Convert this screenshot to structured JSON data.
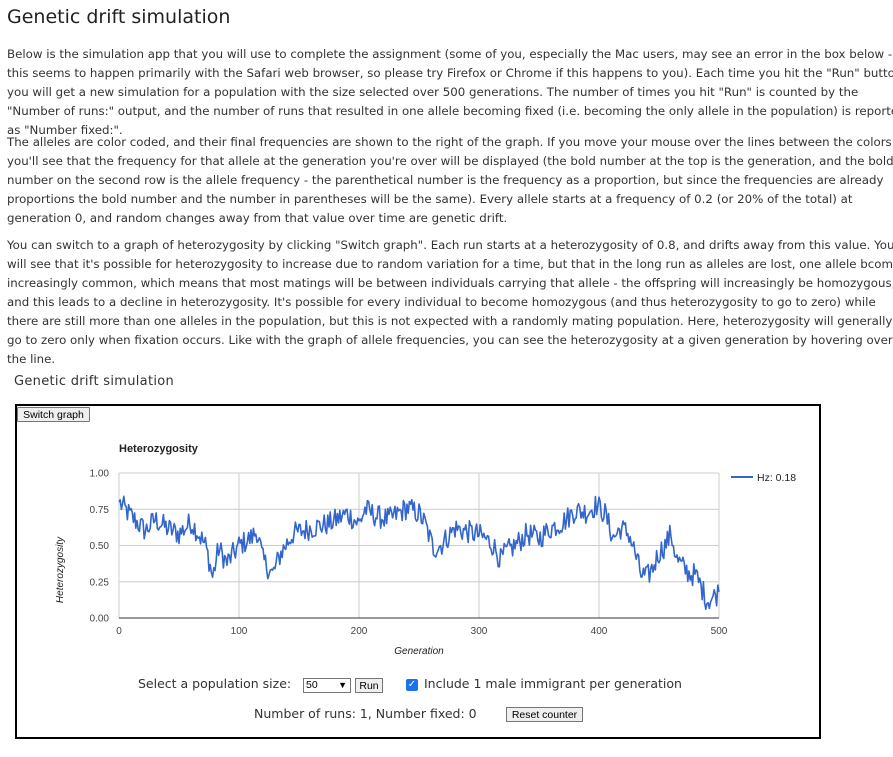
{
  "page": {
    "title": "Genetic drift simulation",
    "paragraphs": [
      "Below is the simulation app that you will use to complete the assignment (some of you, especially the Mac users, may see an error in the box below - this seems to happen primarily with the Safari web browser, so please try Firefox or Chrome if this happens to you). Each time you hit the \"Run\" button you will get a new simulation for a population with the size selected over 500 generations. The number of times you hit \"Run\" is counted by the \"Number of runs:\" output, and the number of runs that resulted in one allele becoming fixed (i.e. becoming the only allele in the population) is reported as \"Number fixed:\".",
      "The alleles are color coded, and their final frequencies are shown to the right of the graph. If you move your mouse over the lines between the colors you'll see that the frequency for that allele at the generation you're over will be displayed (the bold number at the top is the generation, and the bold number on the second row is the allele frequency - the parenthetical number is the frequency as a proportion, but since the frequencies are already proportions the bold number and the number in parentheses will be the same). Every allele starts at a frequency of 0.2 (or 20% of the total) at generation 0, and random changes away from that value over time are genetic drift.",
      "You can switch to a graph of heterozygosity by clicking \"Switch graph\". Each run starts at a heterozygosity of 0.8, and drifts away from this value. You will see that it's possible for heterozygosity to increase due to random variation for a time, but that in the long run as alleles are lost, one allele bcomes increasingly common, which means that most matings will be between individuals carrying that allele - the offspring will increasingly be homozygous, and this leads to a decline in heterozygosity. It's possible for every individual to become homozygous (and thus heterozygosity to go to zero) while there are still more than one alleles in the population, but this is not expected with a randomly mating population. Here, heterozygosity will generally go to zero only when fixation occurs. Like with the graph of allele frequencies, you can see the heterozygosity at a given generation by hovering over the line."
    ]
  },
  "app": {
    "title": "Genetic drift simulation",
    "switch_label": "Switch graph",
    "population_label": "Select a population size:",
    "population_value": "50",
    "run_label": "Run",
    "immigrant_checked": true,
    "immigrant_label": "Include 1 male immigrant per generation",
    "runs_text": "Number of runs: 1, Number fixed: 0",
    "reset_label": "Reset counter"
  },
  "chart_data": {
    "type": "line",
    "title": "Heterozygosity",
    "xlabel": "Generation",
    "ylabel": "Heterozygosity",
    "xlim": [
      0,
      500
    ],
    "ylim": [
      0,
      1
    ],
    "x_ticks": [
      "0",
      "100",
      "200",
      "300",
      "400",
      "500"
    ],
    "y_ticks": [
      "0.00",
      "0.25",
      "0.50",
      "0.75",
      "1.00"
    ],
    "legend_position": "right",
    "grid": true,
    "series": [
      {
        "name": "Hz: 0.18",
        "color": "#3366cc",
        "keypoints": [
          [
            0,
            0.8
          ],
          [
            8,
            0.72
          ],
          [
            15,
            0.66
          ],
          [
            22,
            0.6
          ],
          [
            30,
            0.68
          ],
          [
            40,
            0.62
          ],
          [
            50,
            0.58
          ],
          [
            60,
            0.66
          ],
          [
            65,
            0.6
          ],
          [
            72,
            0.5
          ],
          [
            75,
            0.4
          ],
          [
            78,
            0.28
          ],
          [
            83,
            0.48
          ],
          [
            90,
            0.38
          ],
          [
            100,
            0.5
          ],
          [
            110,
            0.55
          ],
          [
            115,
            0.6
          ],
          [
            120,
            0.4
          ],
          [
            128,
            0.3
          ],
          [
            135,
            0.45
          ],
          [
            145,
            0.58
          ],
          [
            160,
            0.62
          ],
          [
            175,
            0.65
          ],
          [
            190,
            0.72
          ],
          [
            200,
            0.65
          ],
          [
            205,
            0.75
          ],
          [
            215,
            0.7
          ],
          [
            225,
            0.68
          ],
          [
            240,
            0.76
          ],
          [
            250,
            0.72
          ],
          [
            255,
            0.65
          ],
          [
            262,
            0.48
          ],
          [
            268,
            0.5
          ],
          [
            280,
            0.62
          ],
          [
            288,
            0.6
          ],
          [
            298,
            0.58
          ],
          [
            305,
            0.55
          ],
          [
            312,
            0.5
          ],
          [
            318,
            0.4
          ],
          [
            322,
            0.45
          ],
          [
            330,
            0.5
          ],
          [
            340,
            0.58
          ],
          [
            350,
            0.55
          ],
          [
            360,
            0.62
          ],
          [
            370,
            0.66
          ],
          [
            380,
            0.74
          ],
          [
            390,
            0.73
          ],
          [
            398,
            0.78
          ],
          [
            405,
            0.72
          ],
          [
            412,
            0.55
          ],
          [
            418,
            0.62
          ],
          [
            425,
            0.58
          ],
          [
            430,
            0.45
          ],
          [
            435,
            0.3
          ],
          [
            440,
            0.28
          ],
          [
            445,
            0.35
          ],
          [
            450,
            0.45
          ],
          [
            455,
            0.5
          ],
          [
            460,
            0.58
          ],
          [
            465,
            0.4
          ],
          [
            470,
            0.35
          ],
          [
            476,
            0.3
          ],
          [
            480,
            0.3
          ],
          [
            485,
            0.22
          ],
          [
            490,
            0.12
          ],
          [
            495,
            0.14
          ],
          [
            500,
            0.18
          ]
        ]
      }
    ]
  }
}
